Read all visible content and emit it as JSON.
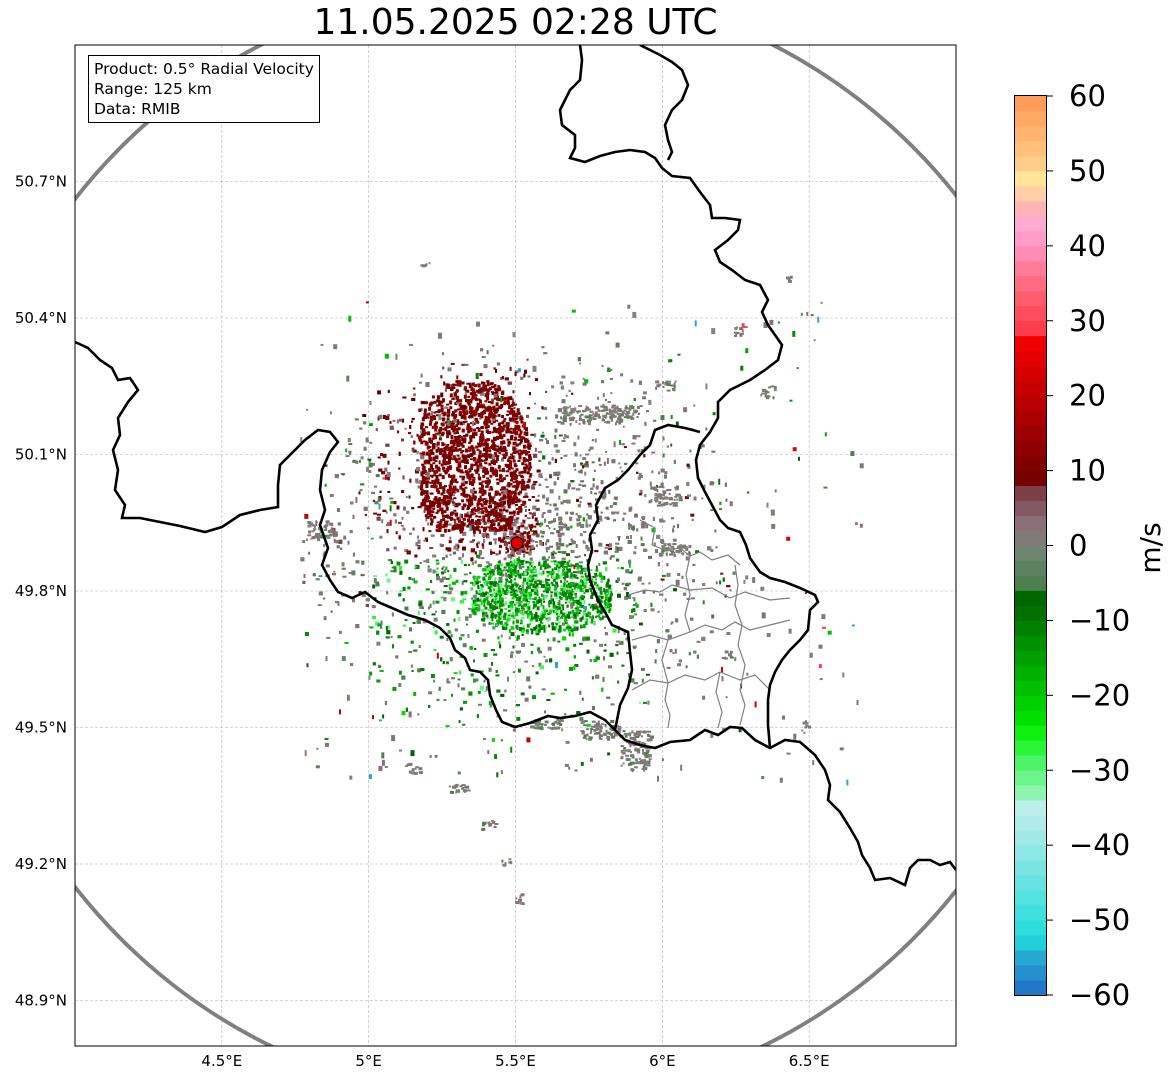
{
  "title": "11.05.2025 02:28 UTC",
  "info": {
    "product": "Product: 0.5° Radial Velocity",
    "range": "Range: 125 km",
    "data": "Data: RMIB"
  },
  "lat_ticks": [
    {
      "value": 50.7,
      "label": "50.7°N"
    },
    {
      "value": 50.4,
      "label": "50.4°N"
    },
    {
      "value": 50.1,
      "label": "50.1°N"
    },
    {
      "value": 49.8,
      "label": "49.8°N"
    },
    {
      "value": 49.5,
      "label": "49.5°N"
    },
    {
      "value": 49.2,
      "label": "49.2°N"
    },
    {
      "value": 48.9,
      "label": "48.9°N"
    }
  ],
  "lon_ticks": [
    {
      "value": 4.5,
      "label": "4.5°E"
    },
    {
      "value": 5.0,
      "label": "5°E"
    },
    {
      "value": 5.5,
      "label": "5.5°E"
    },
    {
      "value": 6.0,
      "label": "6°E"
    },
    {
      "value": 6.5,
      "label": "6.5°E"
    }
  ],
  "extent": {
    "lon_min": 4.0,
    "lon_max": 7.0,
    "lat_min": 48.8,
    "lat_max": 51.0
  },
  "radar_site": {
    "lon": 5.505,
    "lat": 49.915
  },
  "colorbar": {
    "unit": "m/s",
    "min": -60,
    "max": 60,
    "ticks": [
      {
        "value": 60,
        "label": "60"
      },
      {
        "value": 50,
        "label": "50"
      },
      {
        "value": 40,
        "label": "40"
      },
      {
        "value": 30,
        "label": "30"
      },
      {
        "value": 20,
        "label": "20"
      },
      {
        "value": 10,
        "label": "10"
      },
      {
        "value": 0,
        "label": "0"
      },
      {
        "value": -10,
        "label": "−10"
      },
      {
        "value": -20,
        "label": "−20"
      },
      {
        "value": -30,
        "label": "−30"
      },
      {
        "value": -40,
        "label": "−40"
      },
      {
        "value": -50,
        "label": "−50"
      },
      {
        "value": -60,
        "label": "−60"
      }
    ],
    "bands": [
      {
        "from": -60,
        "to": -58,
        "color": "#1f78c8"
      },
      {
        "from": -58,
        "to": -56,
        "color": "#2590cc"
      },
      {
        "from": -56,
        "to": -54,
        "color": "#26a8d0"
      },
      {
        "from": -54,
        "to": -52,
        "color": "#22cfd8"
      },
      {
        "from": -52,
        "to": -50,
        "color": "#2ddedd"
      },
      {
        "from": -50,
        "to": -48,
        "color": "#3fe0df"
      },
      {
        "from": -48,
        "to": -46,
        "color": "#52e2e0"
      },
      {
        "from": -46,
        "to": -44,
        "color": "#66e3e2"
      },
      {
        "from": -44,
        "to": -42,
        "color": "#79e5e3"
      },
      {
        "from": -42,
        "to": -40,
        "color": "#8de7e5"
      },
      {
        "from": -40,
        "to": -38,
        "color": "#9fe9e7"
      },
      {
        "from": -38,
        "to": -36,
        "color": "#afebe9"
      },
      {
        "from": -36,
        "to": -34,
        "color": "#bdeeec"
      },
      {
        "from": -34,
        "to": -32,
        "color": "#8ef5b0"
      },
      {
        "from": -32,
        "to": -30,
        "color": "#6cf58a"
      },
      {
        "from": -30,
        "to": -28,
        "color": "#4ef468"
      },
      {
        "from": -28,
        "to": -26,
        "color": "#2af436"
      },
      {
        "from": -26,
        "to": -24,
        "color": "#0ef010"
      },
      {
        "from": -24,
        "to": -22,
        "color": "#00e000"
      },
      {
        "from": -22,
        "to": -20,
        "color": "#00d000"
      },
      {
        "from": -20,
        "to": -18,
        "color": "#00c000"
      },
      {
        "from": -18,
        "to": -16,
        "color": "#00b000"
      },
      {
        "from": -16,
        "to": -14,
        "color": "#00a000"
      },
      {
        "from": -14,
        "to": -12,
        "color": "#009000"
      },
      {
        "from": -12,
        "to": -10,
        "color": "#008000"
      },
      {
        "from": -10,
        "to": -8,
        "color": "#007000"
      },
      {
        "from": -8,
        "to": -6,
        "color": "#006600"
      },
      {
        "from": -6,
        "to": -4,
        "color": "#4e7f4e"
      },
      {
        "from": -4,
        "to": -2,
        "color": "#5e8160"
      },
      {
        "from": -2,
        "to": 0,
        "color": "#6f8570"
      },
      {
        "from": 0,
        "to": 2,
        "color": "#807a78"
      },
      {
        "from": 2,
        "to": 4,
        "color": "#8a6e78"
      },
      {
        "from": 4,
        "to": 6,
        "color": "#845860"
      },
      {
        "from": 6,
        "to": 8,
        "color": "#7a4046"
      },
      {
        "from": 8,
        "to": 10,
        "color": "#760000"
      },
      {
        "from": 10,
        "to": 12,
        "color": "#800000"
      },
      {
        "from": 12,
        "to": 14,
        "color": "#8e0000"
      },
      {
        "from": 14,
        "to": 16,
        "color": "#9c0000"
      },
      {
        "from": 16,
        "to": 18,
        "color": "#aa0000"
      },
      {
        "from": 18,
        "to": 20,
        "color": "#b80000"
      },
      {
        "from": 20,
        "to": 22,
        "color": "#c60000"
      },
      {
        "from": 22,
        "to": 24,
        "color": "#d40000"
      },
      {
        "from": 24,
        "to": 26,
        "color": "#e20000"
      },
      {
        "from": 26,
        "to": 28,
        "color": "#f00000"
      },
      {
        "from": 28,
        "to": 30,
        "color": "#ff3c4c"
      },
      {
        "from": 30,
        "to": 32,
        "color": "#ff4c5e"
      },
      {
        "from": 32,
        "to": 34,
        "color": "#ff5c70"
      },
      {
        "from": 34,
        "to": 36,
        "color": "#ff6c82"
      },
      {
        "from": 36,
        "to": 38,
        "color": "#ff7c98"
      },
      {
        "from": 38,
        "to": 40,
        "color": "#ff8cb4"
      },
      {
        "from": 40,
        "to": 42,
        "color": "#ff9cc8"
      },
      {
        "from": 42,
        "to": 44,
        "color": "#ffaad0"
      },
      {
        "from": 44,
        "to": 46,
        "color": "#ffb4b4"
      },
      {
        "from": 46,
        "to": 48,
        "color": "#ffd0a8"
      },
      {
        "from": 48,
        "to": 50,
        "color": "#ffe49a"
      },
      {
        "from": 50,
        "to": 52,
        "color": "#ffcd8a"
      },
      {
        "from": 52,
        "to": 54,
        "color": "#ffc07c"
      },
      {
        "from": 54,
        "to": 56,
        "color": "#ffb470"
      },
      {
        "from": 56,
        "to": 58,
        "color": "#ffa866"
      },
      {
        "from": 58,
        "to": 60,
        "color": "#ff9c5a"
      }
    ]
  },
  "colors": {
    "border": "#000000",
    "range_ring": "#808080",
    "admin": "#7f7f7f",
    "grid": "#b0b0b0",
    "radar_marker": "#e00000"
  }
}
